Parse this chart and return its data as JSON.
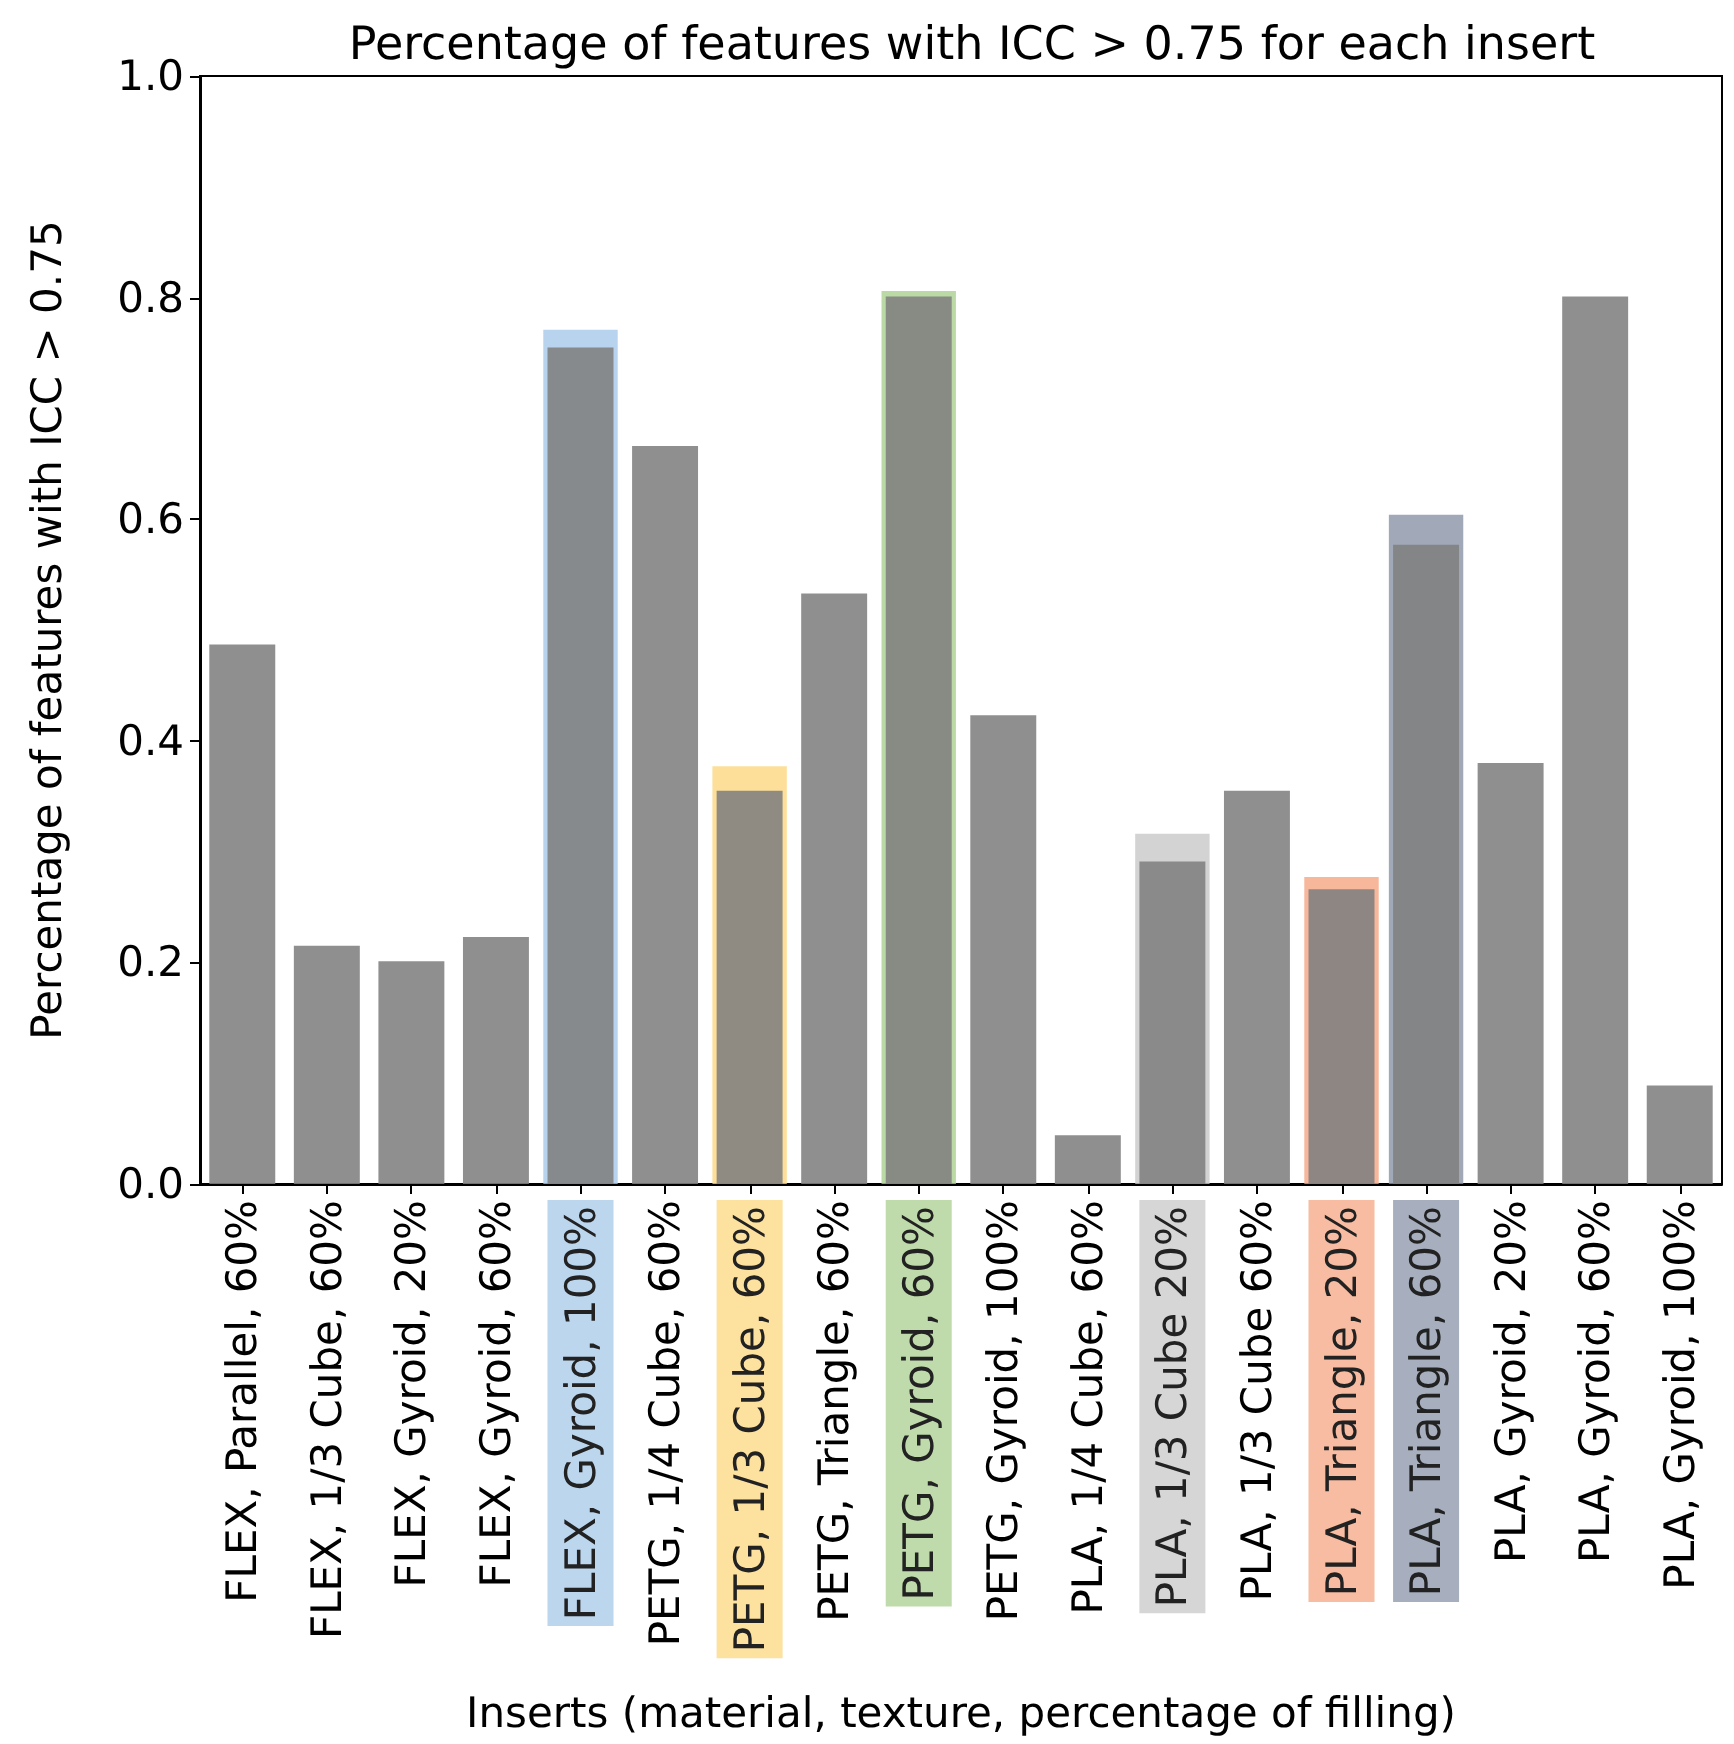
{
  "chart_data": {
    "type": "bar",
    "title": "Percentage of features with ICC > 0.75 for each insert",
    "xlabel": "Inserts (material, texture, percentage of filling)",
    "ylabel": "Percentage of features with ICC > 0.75",
    "categories": [
      "FLEX, Parallel, 60%",
      "FLEX, 1/3 Cube, 60%",
      "FLEX, Gyroid, 20%",
      "FLEX, Gyroid, 60%",
      "FLEX, Gyroid, 100%",
      "PETG, 1/4 Cube, 60%",
      "PETG, 1/3 Cube, 60%",
      "PETG, Triangle, 60%",
      "PETG, Gyroid, 60%",
      "PETG, Gyroid, 100%",
      "PLA, 1/4 Cube, 60%",
      "PLA, 1/3 Cube 20%",
      "PLA, 1/3 Cube 60%",
      "PLA, Triangle, 20%",
      "PLA, Triangle, 60%",
      "PLA, Gyroid, 20%",
      "PLA, Gyroid, 60%",
      "PLA, Gyroid, 100%"
    ],
    "series": [
      {
        "color": "#808080",
        "values": [
          0.487,
          0.215,
          0.201,
          0.223,
          0.755,
          0.666,
          0.355,
          0.533,
          0.801,
          0.423,
          0.044,
          0.291,
          0.355,
          0.266,
          0.577,
          0.38,
          0.801,
          0.089
        ]
      },
      {
        "colors": [
          null,
          null,
          null,
          null,
          "#a6c8e8",
          null,
          "#fcd77f",
          null,
          "#a9cf8f",
          null,
          null,
          "#c8c8c8",
          null,
          "#f4a582",
          "#8a94a8",
          null,
          null,
          null
        ],
        "values": [
          null,
          null,
          null,
          null,
          0.771,
          null,
          0.377,
          null,
          0.806,
          null,
          null,
          0.316,
          null,
          0.277,
          0.604,
          null,
          null,
          null
        ]
      }
    ],
    "ylim": [
      0,
      1
    ],
    "yticks": [
      {
        "value": 0,
        "label": "0.0"
      },
      {
        "value": 0.2,
        "label": "0.2"
      },
      {
        "value": 0.4,
        "label": "0.4"
      },
      {
        "value": 0.6,
        "label": "0.6"
      },
      {
        "value": 0.8,
        "label": "0.8"
      },
      {
        "value": 1,
        "label": "1.0"
      }
    ],
    "grid": false
  }
}
